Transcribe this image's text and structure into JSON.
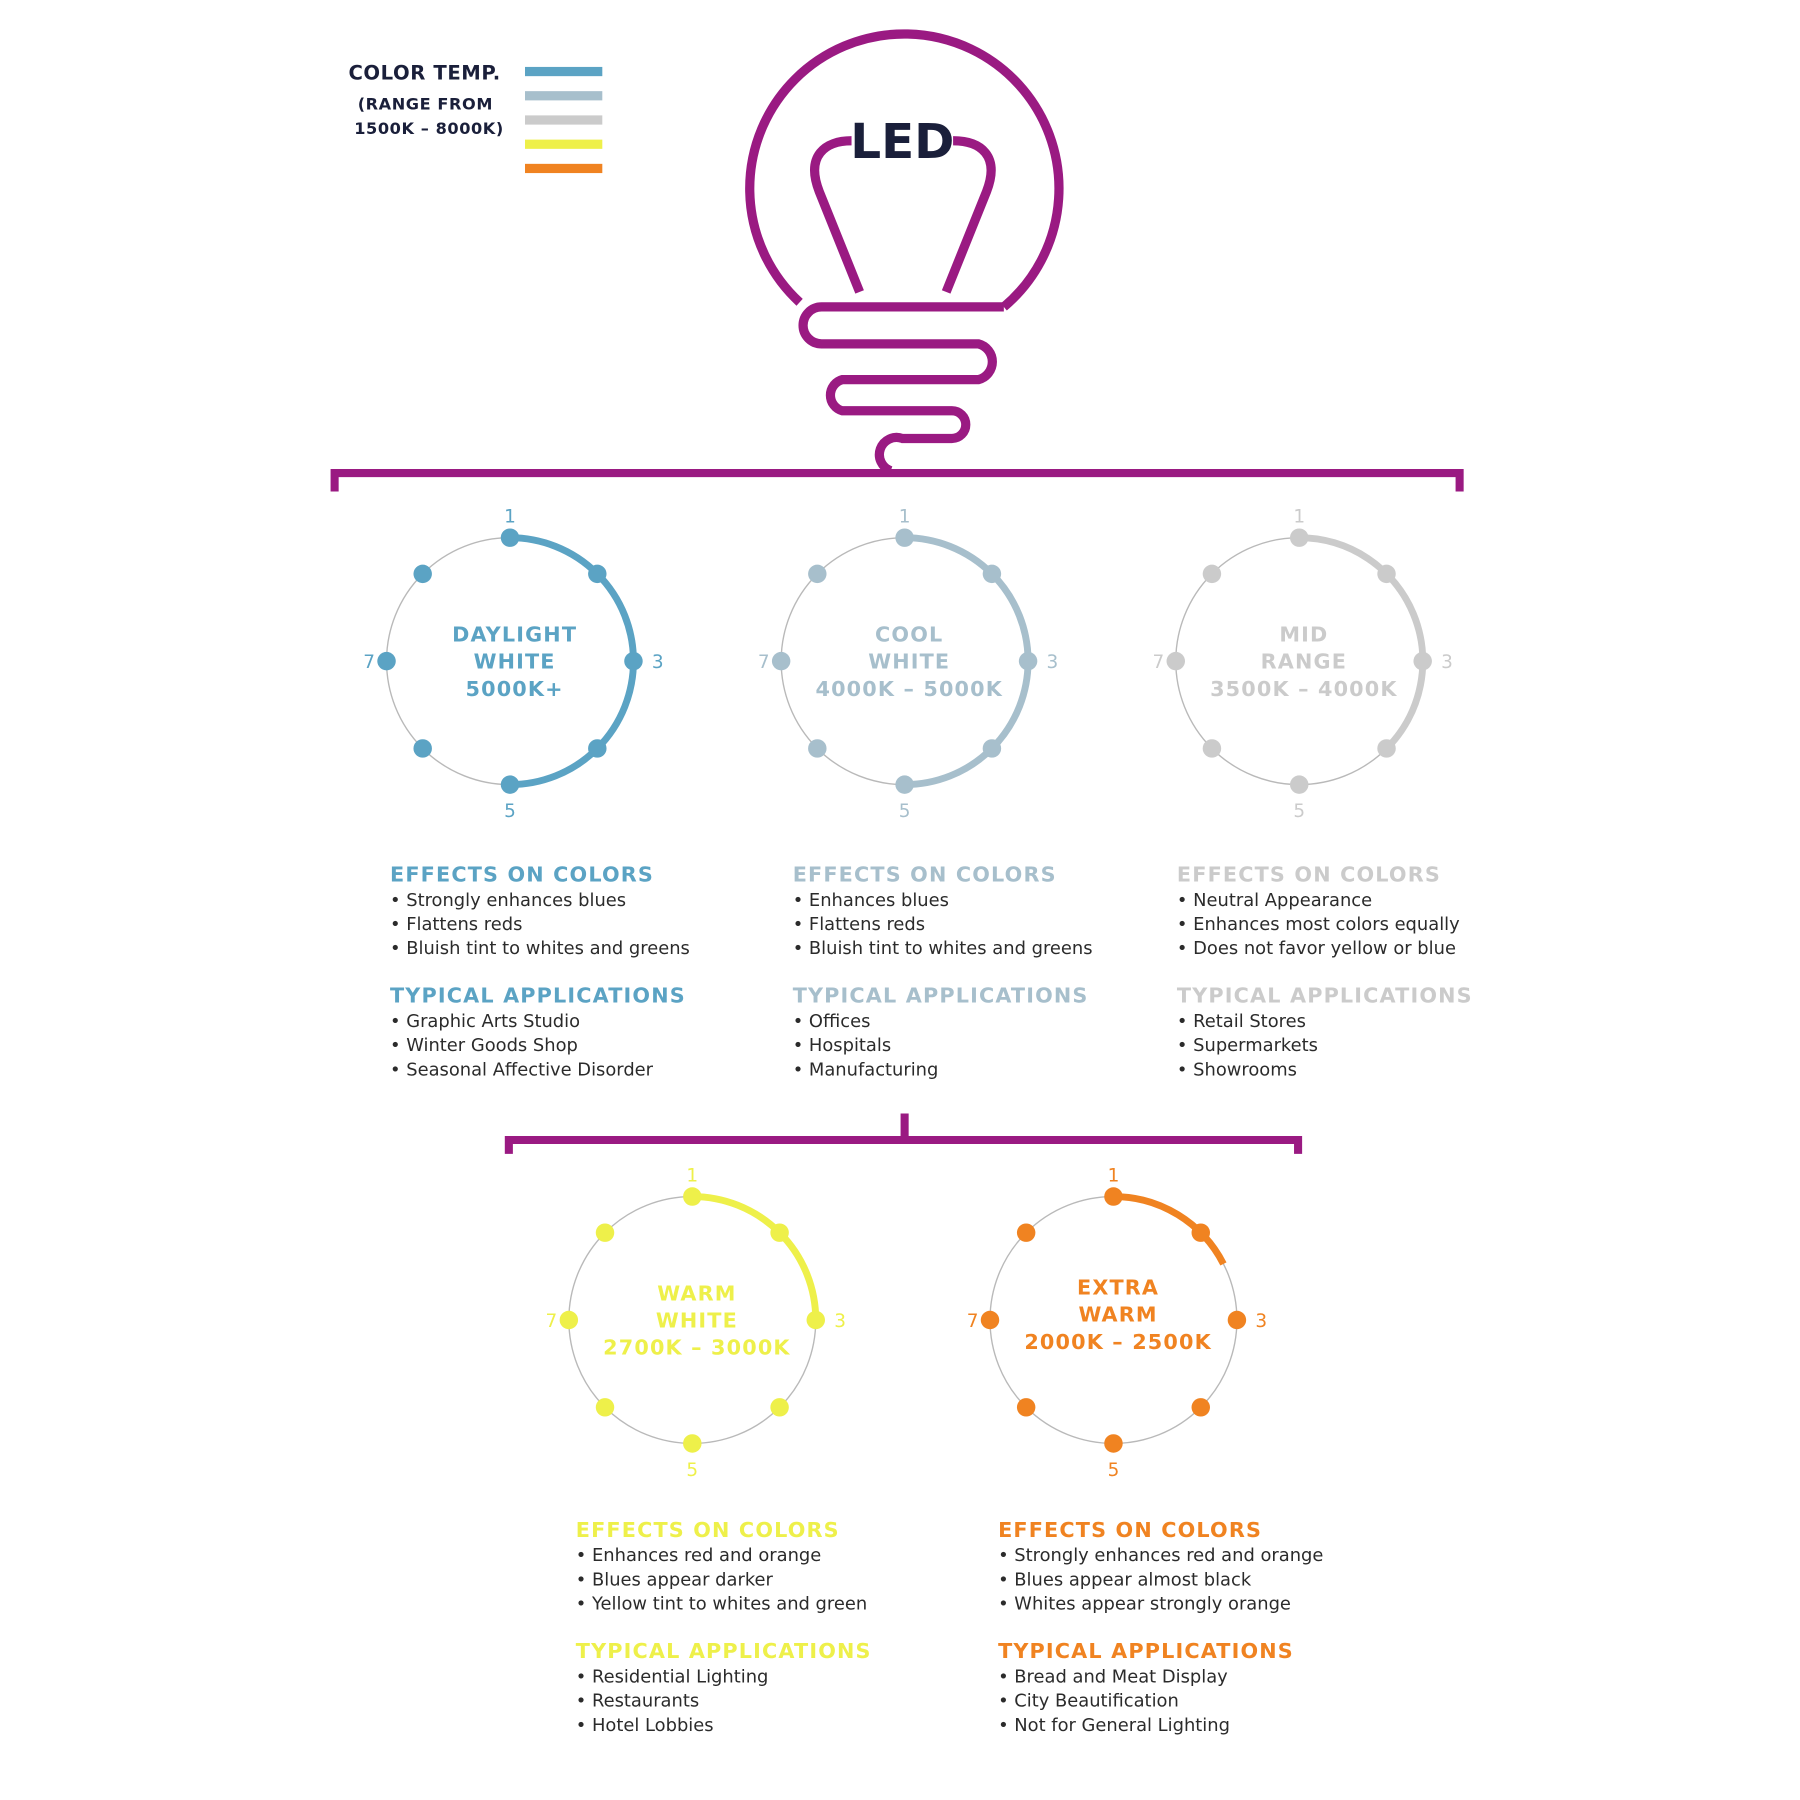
{
  "legend": {
    "title": "COLOR TEMP.",
    "subtitle_line1": "(RANGE FROM",
    "subtitle_line2": "1500K – 8000K)",
    "swatches": [
      "#5ba3c4",
      "#a7bfcc",
      "#cbcbcb",
      "#eef04a",
      "#f08321"
    ]
  },
  "bulb": {
    "label": "LED",
    "color": "#9a1a82",
    "label_color": "#1a1f3a"
  },
  "connector_color": "#9a1a82",
  "marker_labels": [
    "1",
    "3",
    "5",
    "7"
  ],
  "categories": [
    {
      "name_lines": [
        "DAYLIGHT",
        "WHITE",
        "5000K+"
      ],
      "color": "#5ba3c4",
      "arc_end_marker": 5,
      "effects_heading": "EFFECTS ON COLORS",
      "effects": [
        "• Strongly enhances blues",
        "• Flattens reds",
        "• Bluish tint to whites and greens"
      ],
      "applications_heading": "TYPICAL APPLICATIONS",
      "applications": [
        "• Graphic Arts Studio",
        "• Winter Goods Shop",
        "• Seasonal Affective Disorder"
      ]
    },
    {
      "name_lines": [
        "COOL",
        "WHITE",
        "4000K – 5000K"
      ],
      "color": "#a7bfcc",
      "arc_end_marker": 5,
      "effects_heading": "EFFECTS ON COLORS",
      "effects": [
        "• Enhances blues",
        "• Flattens reds",
        "• Bluish tint to whites and greens"
      ],
      "applications_heading": "TYPICAL APPLICATIONS",
      "applications": [
        "• Offices",
        "• Hospitals",
        "• Manufacturing"
      ]
    },
    {
      "name_lines": [
        "MID",
        "RANGE",
        "3500K – 4000K"
      ],
      "color": "#cbcbcb",
      "arc_end_marker": 4,
      "effects_heading": "EFFECTS ON COLORS",
      "effects": [
        "• Neutral Appearance",
        "• Enhances most colors equally",
        "• Does not favor yellow or blue"
      ],
      "applications_heading": "TYPICAL APPLICATIONS",
      "applications": [
        "• Retail Stores",
        "• Supermarkets",
        "• Showrooms"
      ]
    },
    {
      "name_lines": [
        "WARM",
        "WHITE",
        "2700K – 3000K"
      ],
      "color": "#eef04a",
      "arc_end_marker": 3,
      "effects_heading": "EFFECTS ON COLORS",
      "effects": [
        "• Enhances red and orange",
        "• Blues appear darker",
        "• Yellow tint to whites and green"
      ],
      "applications_heading": "TYPICAL APPLICATIONS",
      "applications": [
        "• Residential Lighting",
        "• Restaurants",
        "• Hotel Lobbies"
      ]
    },
    {
      "name_lines": [
        "EXTRA",
        "WARM",
        "2000K – 2500K"
      ],
      "color": "#f08321",
      "arc_end_marker": 2.4,
      "effects_heading": "EFFECTS ON COLORS",
      "effects": [
        "• Strongly enhances red and orange",
        "• Blues appear almost black",
        "• Whites appear strongly orange"
      ],
      "applications_heading": "TYPICAL APPLICATIONS",
      "applications": [
        "• Bread and Meat Display",
        "• City Beautification",
        "• Not for General Lighting"
      ]
    }
  ]
}
